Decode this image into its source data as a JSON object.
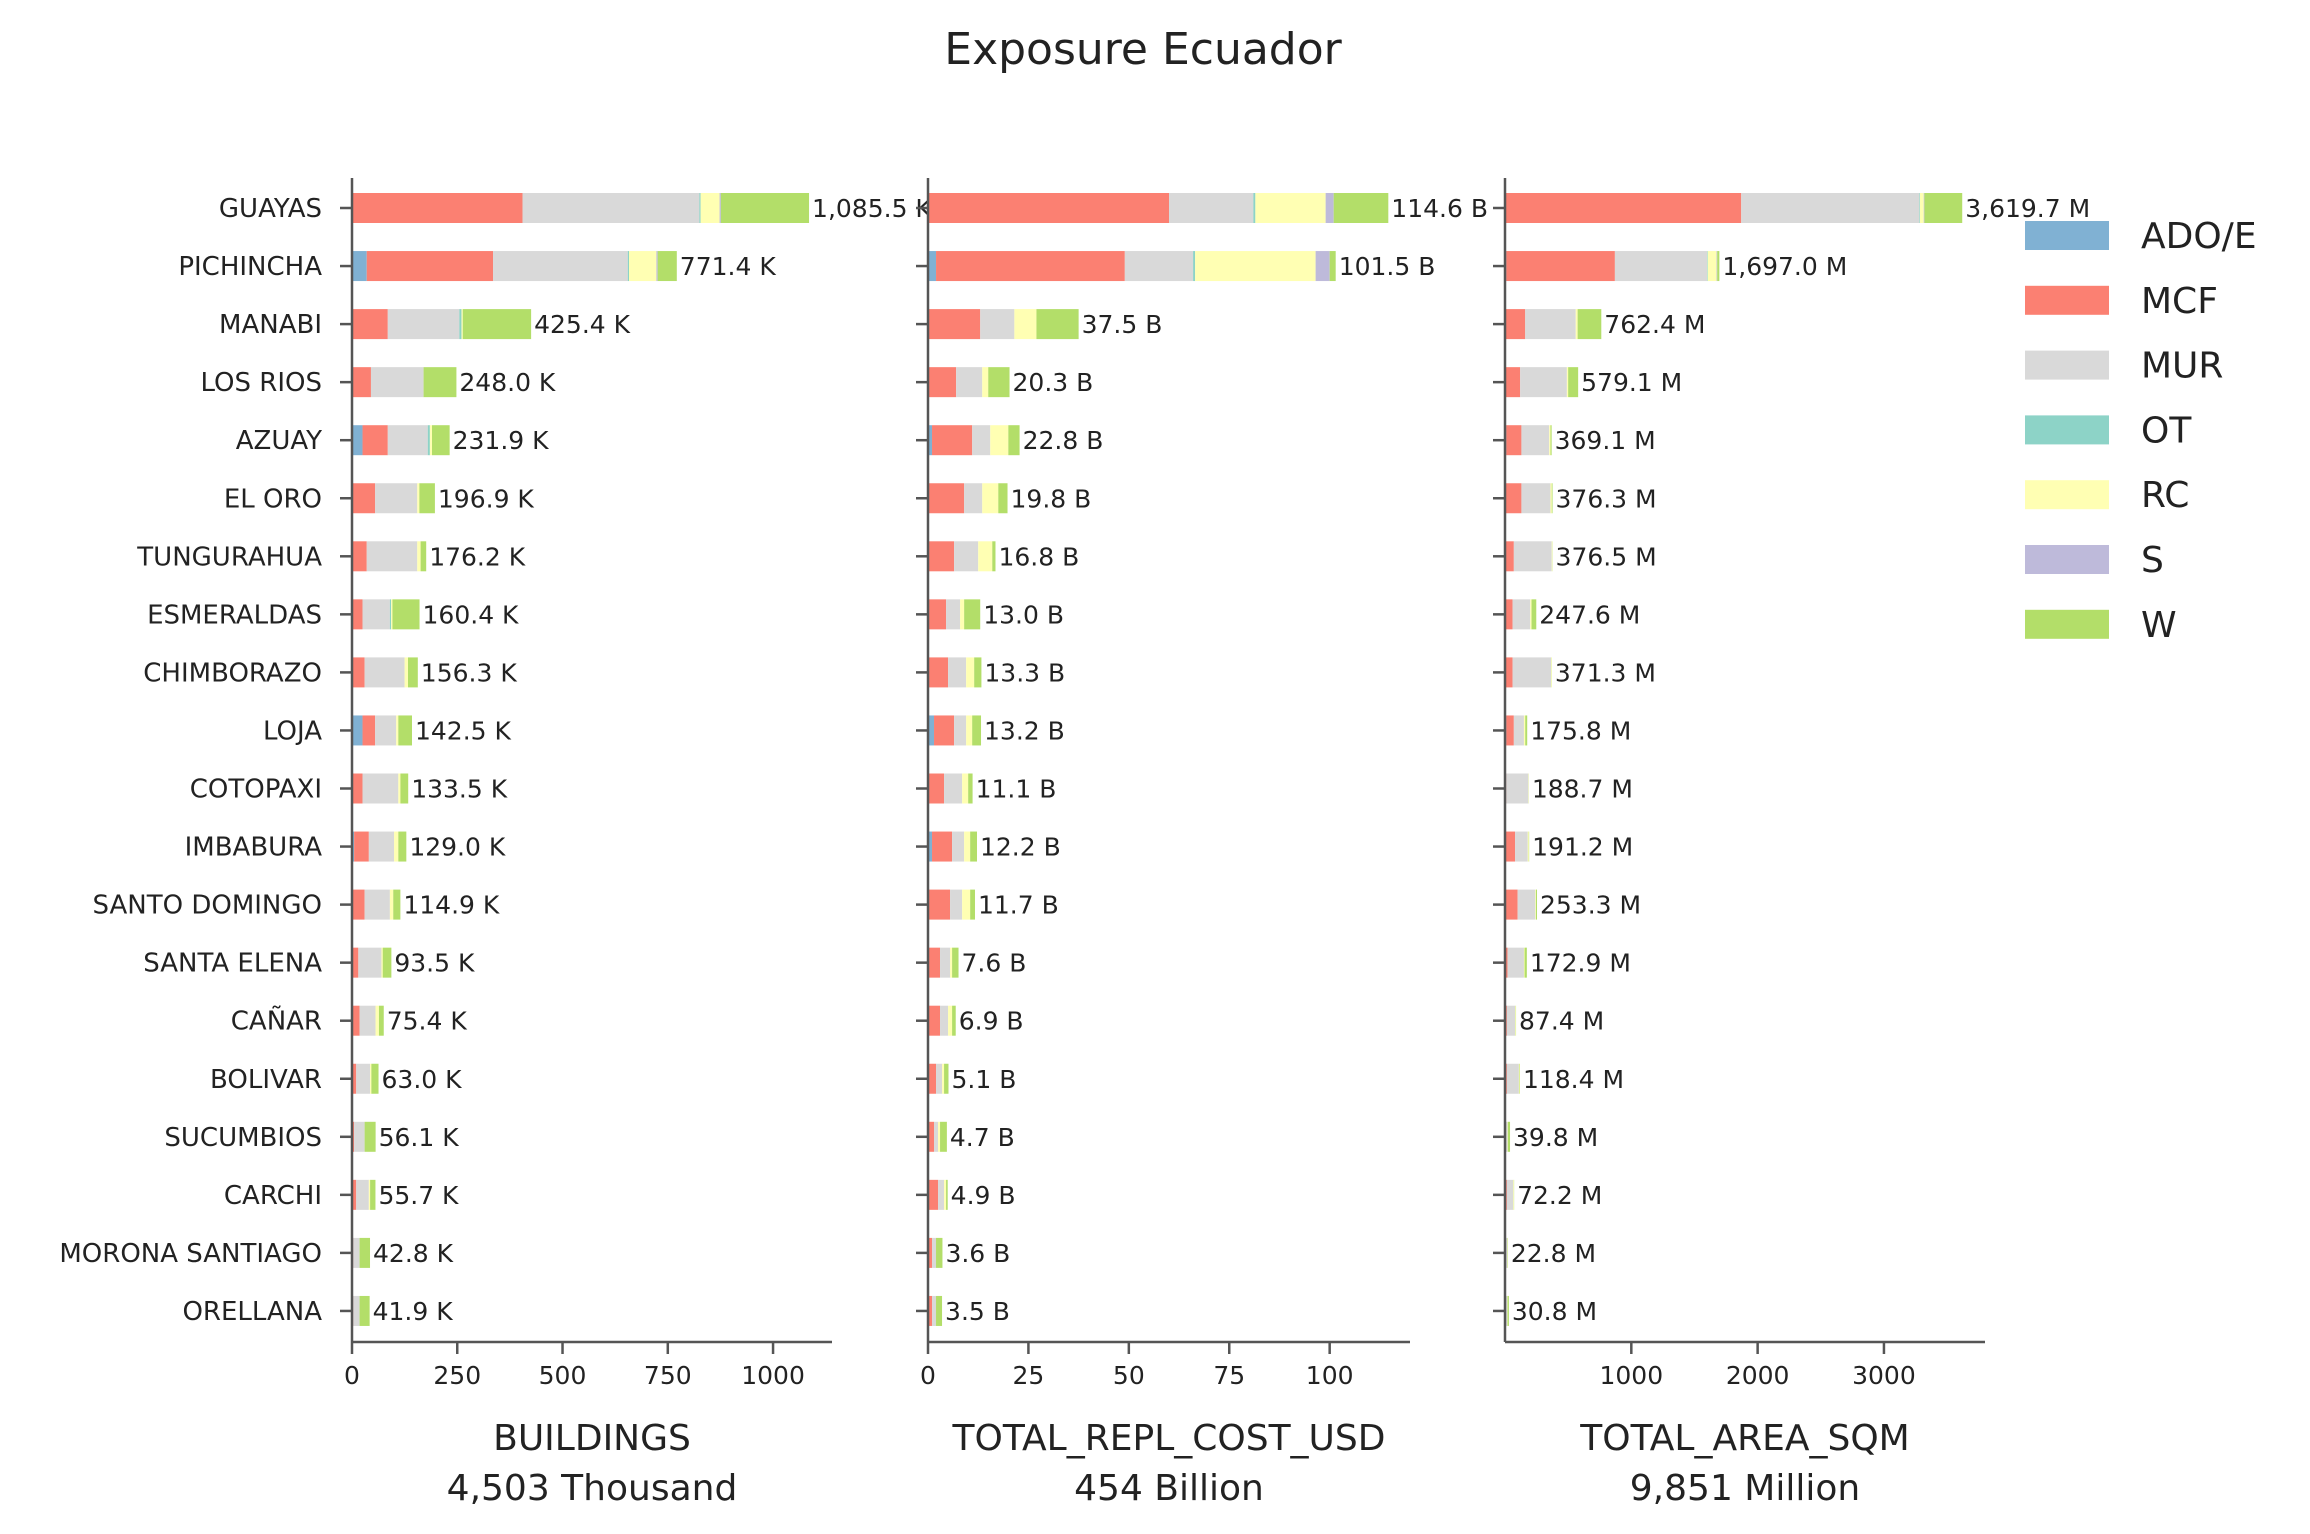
{
  "chart_data": {
    "type": "bar",
    "orientation": "horizontal",
    "stacked": true,
    "title": "Exposure Ecuador",
    "categories": [
      "GUAYAS",
      "PICHINCHA",
      "MANABI",
      "LOS RIOS",
      "AZUAY",
      "EL ORO",
      "TUNGURAHUA",
      "ESMERALDAS",
      "CHIMBORAZO",
      "LOJA",
      "COTOPAXI",
      "IMBABURA",
      "SANTO DOMINGO",
      "SANTA ELENA",
      "CAÑAR",
      "BOLIVAR",
      "SUCUMBIOS",
      "CARCHI",
      "MORONA SANTIAGO",
      "ORELLANA"
    ],
    "legend": {
      "placement": "right",
      "items": [
        {
          "name": "ADO/E",
          "color": "#80b1d3"
        },
        {
          "name": "MCF",
          "color": "#fb8072"
        },
        {
          "name": "MUR",
          "color": "#d9d9d9"
        },
        {
          "name": "OT",
          "color": "#8dd3c7"
        },
        {
          "name": "RC",
          "color": "#ffffb3"
        },
        {
          "name": "S",
          "color": "#bebada"
        },
        {
          "name": "W",
          "color": "#b3de69"
        }
      ]
    },
    "panels": [
      {
        "xlabel": "BUILDINGS",
        "subtitle": "4,503 Thousand",
        "xlim": [
          0,
          1140
        ],
        "ticks": [
          0,
          250,
          500,
          750,
          1000
        ],
        "tick_labels": [
          "0",
          "250",
          "500",
          "750",
          "1000"
        ],
        "value_labels": [
          "1,085.5 K",
          "771.4 K",
          "425.4 K",
          "248.0 K",
          "231.9 K",
          "196.9 K",
          "176.2 K",
          "160.4 K",
          "156.3 K",
          "142.5 K",
          "133.5 K",
          "129.0 K",
          "114.9 K",
          "93.5 K",
          "75.4 K",
          "63.0 K",
          "56.1 K",
          "55.7 K",
          "42.8 K",
          "41.9 K"
        ],
        "values": [
          [
            0,
            405,
            420,
            3,
            45,
            3,
            209.5
          ],
          [
            35,
            300,
            320,
            3,
            65,
            3,
            45.4
          ],
          [
            0,
            85,
            170,
            5,
            3,
            0,
            162.4
          ],
          [
            0,
            45,
            125,
            0,
            0,
            0,
            78
          ],
          [
            25,
            60,
            95,
            5,
            5,
            0,
            41.9
          ],
          [
            0,
            55,
            100,
            0,
            5,
            0,
            36.9
          ],
          [
            0,
            35,
            120,
            0,
            8,
            0,
            13.2
          ],
          [
            0,
            25,
            65,
            3,
            3,
            0,
            64.4
          ],
          [
            0,
            30,
            95,
            0,
            8,
            0,
            23.3
          ],
          [
            25,
            30,
            50,
            0,
            5,
            0,
            32.5
          ],
          [
            0,
            25,
            85,
            0,
            5,
            0,
            18.5
          ],
          [
            5,
            35,
            60,
            0,
            10,
            0,
            19
          ],
          [
            0,
            30,
            60,
            0,
            8,
            0,
            16.9
          ],
          [
            0,
            15,
            55,
            0,
            3,
            0,
            20.5
          ],
          [
            0,
            18,
            38,
            0,
            8,
            0,
            11.4
          ],
          [
            0,
            10,
            33,
            0,
            3,
            0,
            17
          ],
          [
            0,
            5,
            25,
            0,
            0,
            0,
            26.1
          ],
          [
            0,
            10,
            30,
            0,
            3,
            0,
            12.7
          ],
          [
            0,
            3,
            15,
            0,
            0,
            0,
            24.8
          ],
          [
            0,
            3,
            15,
            0,
            0,
            0,
            23.9
          ]
        ]
      },
      {
        "xlabel": "TOTAL_REPL_COST_USD",
        "subtitle": "454 Billion",
        "xlim": [
          0,
          120
        ],
        "ticks": [
          0,
          25,
          50,
          75,
          100
        ],
        "tick_labels": [
          "0",
          "25",
          "50",
          "75",
          "100"
        ],
        "value_labels": [
          "114.6 B",
          "101.5 B",
          "37.5 B",
          "20.3 B",
          "22.8 B",
          "19.8 B",
          "16.8 B",
          "13.0 B",
          "13.3 B",
          "13.2 B",
          "11.1 B",
          "12.2 B",
          "11.7 B",
          "7.6 B",
          "6.9 B",
          "5.1 B",
          "4.7 B",
          "4.9 B",
          "3.6 B",
          "3.5 B"
        ],
        "values": [
          [
            0,
            60,
            21,
            0.5,
            17.5,
            2,
            13.6
          ],
          [
            2,
            47,
            17,
            0.5,
            30,
            3.5,
            1.5
          ],
          [
            0,
            13,
            8.5,
            0,
            5.5,
            0,
            10.5
          ],
          [
            0,
            7,
            6.5,
            0,
            1.5,
            0,
            5.3
          ],
          [
            1,
            10,
            4.5,
            0,
            4.5,
            0,
            2.8
          ],
          [
            0,
            9,
            4.5,
            0,
            4,
            0,
            2.3
          ],
          [
            0,
            6.5,
            6,
            0,
            3.5,
            0,
            0.8
          ],
          [
            0,
            4.5,
            3.5,
            0,
            1,
            0,
            4
          ],
          [
            0,
            5,
            4.5,
            0,
            2,
            0,
            1.8
          ],
          [
            1.5,
            5,
            3,
            0,
            1.5,
            0,
            2.2
          ],
          [
            0,
            4,
            4.5,
            0,
            1.5,
            0,
            1.1
          ],
          [
            1,
            5,
            3,
            0,
            1.5,
            0,
            1.7
          ],
          [
            0,
            5.5,
            3,
            0,
            2,
            0,
            1.2
          ],
          [
            0,
            3,
            2.5,
            0,
            0.5,
            0,
            1.6
          ],
          [
            0,
            3,
            2,
            0,
            1,
            0,
            0.9
          ],
          [
            0,
            2,
            1.5,
            0,
            0.5,
            0,
            1.1
          ],
          [
            0,
            1.5,
            1,
            0,
            0.5,
            0,
            1.7
          ],
          [
            0,
            2.5,
            1.5,
            0,
            0.5,
            0,
            0.4
          ],
          [
            0,
            1,
            1,
            0,
            0,
            0,
            1.6
          ],
          [
            0,
            1,
            1,
            0,
            0,
            0,
            1.5
          ]
        ]
      },
      {
        "xlabel": "TOTAL_AREA_SQM",
        "subtitle": "9,851 Million",
        "xlim": [
          0,
          3800
        ],
        "ticks": [
          1000,
          2000,
          3000
        ],
        "tick_labels": [
          "1000",
          "2000",
          "3000"
        ],
        "value_labels": [
          "3,619.7 M",
          "1,697.0 M",
          "762.4 M",
          "579.1 M",
          "369.1 M",
          "376.3 M",
          "376.5 M",
          "247.6 M",
          "371.3 M",
          "175.8 M",
          "188.7 M",
          "191.2 M",
          "253.3 M",
          "172.9 M",
          "87.4 M",
          "118.4 M",
          "39.8 M",
          "72.2 M",
          "22.8 M",
          "30.8 M"
        ],
        "values": [
          [
            0,
            1870,
            1410,
            5,
            30,
            5,
            299.7
          ],
          [
            10,
            860,
            730,
            5,
            70,
            5,
            17
          ],
          [
            0,
            160,
            400,
            0,
            15,
            0,
            187.4
          ],
          [
            0,
            120,
            370,
            0,
            10,
            0,
            79.1
          ],
          [
            10,
            120,
            220,
            0,
            10,
            0,
            9.1
          ],
          [
            0,
            130,
            230,
            0,
            10,
            0,
            6.3
          ],
          [
            0,
            70,
            300,
            0,
            5,
            0,
            1.5
          ],
          [
            0,
            60,
            140,
            0,
            10,
            0,
            37.6
          ],
          [
            0,
            60,
            305,
            0,
            5,
            0,
            1.3
          ],
          [
            10,
            60,
            80,
            0,
            10,
            0,
            15.8
          ],
          [
            0,
            10,
            175,
            0,
            3,
            0,
            0.7
          ],
          [
            0,
            80,
            100,
            0,
            8,
            0,
            3.2
          ],
          [
            0,
            100,
            140,
            0,
            5,
            0,
            8.3
          ],
          [
            0,
            20,
            130,
            0,
            5,
            0,
            17.9
          ],
          [
            0,
            15,
            65,
            0,
            5,
            0,
            2.4
          ],
          [
            0,
            15,
            95,
            0,
            5,
            0,
            3.4
          ],
          [
            0,
            3,
            17,
            0,
            3,
            0,
            16.8
          ],
          [
            0,
            15,
            50,
            0,
            5,
            0,
            2.2
          ],
          [
            0,
            3,
            15,
            0,
            2,
            0,
            2.8
          ],
          [
            0,
            3,
            15,
            0,
            2,
            0,
            10.8
          ]
        ]
      }
    ]
  }
}
